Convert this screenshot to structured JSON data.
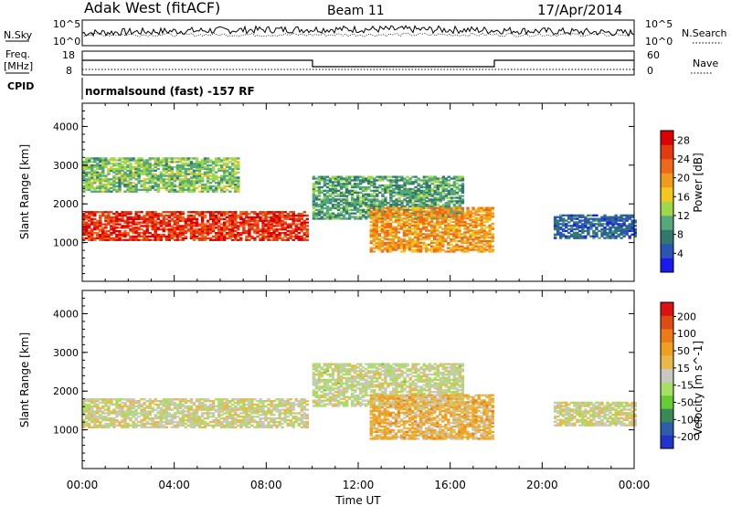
{
  "header": {
    "station": "Adak West (fitACF)",
    "beam": "Beam 11",
    "date": "17/Apr/2014"
  },
  "noise_panel": {
    "left_label": "N.Sky",
    "right_label": "N.Search",
    "left_ticks": [
      "10^5",
      "10^0"
    ],
    "right_ticks": [
      "10^5",
      "10^0"
    ]
  },
  "freq_panel": {
    "left_label_1": "Freq.",
    "left_label_2": "[MHz]",
    "left_ticks": [
      "18",
      "8"
    ],
    "right_label": "Nave",
    "right_ticks": [
      "60",
      "0"
    ],
    "cpid_label": "CPID",
    "program": "normalsound (fast) -157 RF"
  },
  "colors": {
    "power": [
      "#1a1af0",
      "#2a55b4",
      "#32786e",
      "#55a87a",
      "#9fd74a",
      "#f2c81e",
      "#f29a1e",
      "#ee6a1a",
      "#e43a12",
      "#dd0000"
    ],
    "velocity": [
      "#2233cc",
      "#2e5eaa",
      "#3a8a55",
      "#66cc33",
      "#a8e066",
      "#c8c8c0",
      "#e8b94a",
      "#f0a020",
      "#ec7a18",
      "#e04a14",
      "#dd1111"
    ]
  },
  "chart_data": [
    {
      "type": "heatmap",
      "title": "Power",
      "xlabel": "Time UT",
      "ylabel": "Slant Range [km]",
      "x_ticks": [
        "00:00",
        "04:00",
        "08:00",
        "12:00",
        "16:00",
        "20:00",
        "00:00"
      ],
      "y_ticks": [
        "1000",
        "2000",
        "3000",
        "4000"
      ],
      "ylim": [
        0,
        4600
      ],
      "colorbar_label": "Power [dB]",
      "colorbar_ticks": [
        "4",
        "8",
        "12",
        "16",
        "20",
        "24",
        "28"
      ],
      "clim": [
        0,
        30
      ],
      "echo_regions": [
        {
          "t_start": 0.0,
          "t_end": 9.8,
          "range_start": 1050,
          "range_end": 1800,
          "typical_value": 26
        },
        {
          "t_start": 0.0,
          "t_end": 6.8,
          "range_start": 2300,
          "range_end": 3200,
          "typical_value": 12
        },
        {
          "t_start": 10.0,
          "t_end": 16.5,
          "range_start": 1600,
          "range_end": 2700,
          "typical_value": 10
        },
        {
          "t_start": 12.5,
          "t_end": 17.8,
          "range_start": 750,
          "range_end": 1900,
          "typical_value": 20
        },
        {
          "t_start": 20.5,
          "t_end": 24.0,
          "range_start": 1100,
          "range_end": 1700,
          "typical_value": 6
        }
      ]
    },
    {
      "type": "heatmap",
      "title": "Velocity",
      "xlabel": "Time UT",
      "ylabel": "Slant Range [km]",
      "x_ticks": [
        "00:00",
        "04:00",
        "08:00",
        "12:00",
        "16:00",
        "20:00",
        "00:00"
      ],
      "y_ticks": [
        "1000",
        "2000",
        "3000",
        "4000"
      ],
      "ylim": [
        0,
        4600
      ],
      "colorbar_label": "Velocity [m s^-1]",
      "colorbar_ticks": [
        "200",
        "100",
        "50",
        "15",
        "-15",
        "-50",
        "-100",
        "-200"
      ],
      "clim": [
        -250,
        250
      ],
      "echo_regions": [
        {
          "t_start": 0.0,
          "t_end": 9.8,
          "range_start": 1050,
          "range_end": 1800,
          "typical_value": 0
        },
        {
          "t_start": 10.0,
          "t_end": 16.5,
          "range_start": 1600,
          "range_end": 2700,
          "typical_value": -10
        },
        {
          "t_start": 12.5,
          "t_end": 17.8,
          "range_start": 750,
          "range_end": 1900,
          "typical_value": 60
        },
        {
          "t_start": 20.5,
          "t_end": 24.0,
          "range_start": 1100,
          "range_end": 1700,
          "typical_value": 0
        }
      ]
    }
  ]
}
